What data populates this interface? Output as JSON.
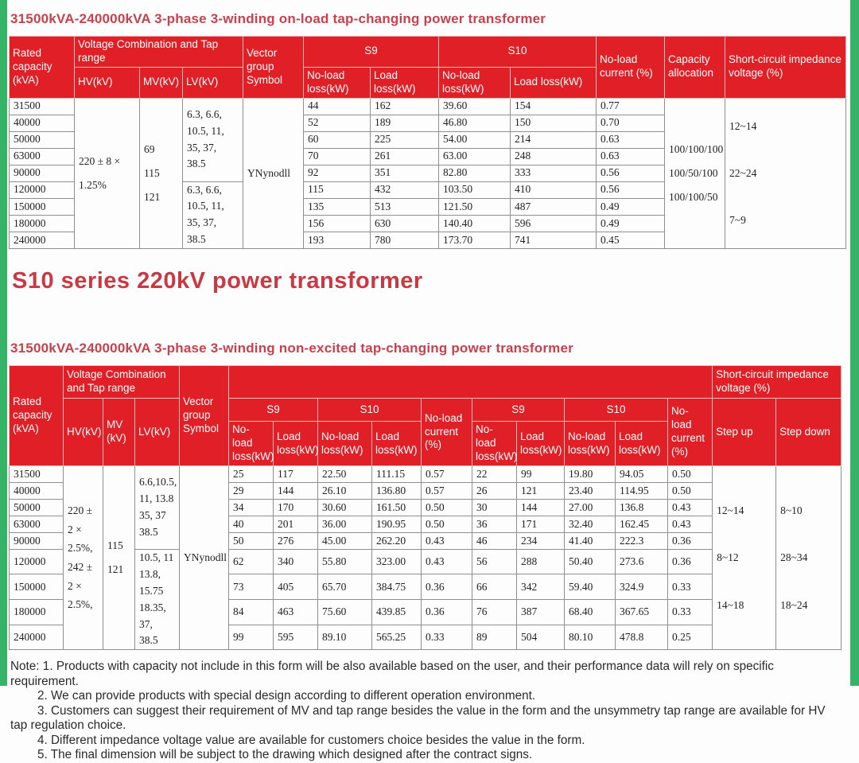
{
  "page": {
    "accent_red": "#e01f26",
    "title_red": "#c8414c",
    "green_strip": "#35b468",
    "title1": "31500kVA-240000kVA 3-phase 3-winding on-load tap-changing power transformer",
    "heading": "S10 series 220kV power transformer",
    "title2": "31500kVA-240000kVA 3-phase 3-winding non-excited tap-changing power transformer"
  },
  "table1": {
    "header": {
      "rated": "Rated capacity (kVA)",
      "voltage_combination": "Voltage Combination and Tap range",
      "hv": "HV(kV)",
      "mv": "MV(kV)",
      "lv": "LV(kV)",
      "vector": "Vector group Symbol",
      "s9": "S9",
      "s10": "S10",
      "no_load_loss": "No-load loss(kW)",
      "load_loss": "Load loss(kW)",
      "no_load_current": "No-load current (%)",
      "capacity_allocation": "Capacity allocation",
      "short_circuit": "Short-circuit impedance voltage (%)"
    },
    "merged": {
      "hv": "220 ± 8 ×\n1.25%",
      "mv": "69\n115\n121",
      "lv_top": "6.3, 6.6,\n10.5, 11,\n35, 37,\n38.5",
      "lv_bottom": "6.3, 6.6,\n10.5, 11,\n35, 37,\n38.5",
      "vector": "YNynodll",
      "capacity_allocation": "100/100/100\n100/50/100\n100/100/50",
      "short_circuit": "12~14\n\n22~24\n\n7~9"
    },
    "rows": [
      [
        "31500",
        "44",
        "162",
        "39.60",
        "154",
        "0.77"
      ],
      [
        "40000",
        "52",
        "189",
        "46.80",
        "150",
        "0.70"
      ],
      [
        "50000",
        "60",
        "225",
        "54.00",
        "214",
        "0.63"
      ],
      [
        "63000",
        "70",
        "261",
        "63.00",
        "248",
        "0.63"
      ],
      [
        "90000",
        "92",
        "351",
        "82.80",
        "333",
        "0.56"
      ],
      [
        "120000",
        "115",
        "432",
        "103.50",
        "410",
        "0.56"
      ],
      [
        "150000",
        "135",
        "513",
        "121.50",
        "487",
        "0.49"
      ],
      [
        "180000",
        "156",
        "630",
        "140.40",
        "596",
        "0.49"
      ],
      [
        "240000",
        "193",
        "780",
        "173.70",
        "741",
        "0.45"
      ]
    ]
  },
  "table2": {
    "header": {
      "rated": "Rated capacity (kVA)",
      "voltage_combination": "Voltage Combination and Tap range",
      "hv": "HV(kV)",
      "mv": "MV (kV)",
      "lv": "LV(kV)",
      "vector": "Vector group Symbol",
      "s9": "S9",
      "s10": "S10",
      "no_load_loss": "No-load loss(kW)",
      "load_loss": "Load loss(kW)",
      "no_load_current": "No-load current (%)",
      "short_circuit": "Short-circuit impedance voltage (%)",
      "step_up": "Step up",
      "step_down": "Step down"
    },
    "merged": {
      "hv": "220 ±\n2 × 2.5%,\n242 ±\n2 × 2.5%,",
      "mv": "115\n121",
      "lv_top": "6.6,10.5,\n11, 13.8\n35, 37\n38.5",
      "lv_bottom": "10.5, 11\n13.8, 15.75\n18.35, 37,\n38.5",
      "vector": "YNynodll",
      "step_up": "12~14\n\n8~12\n\n14~18",
      "step_down": "8~10\n\n28~34\n\n18~24"
    },
    "rows": [
      [
        "31500",
        "25",
        "117",
        "22.50",
        "111.15",
        "0.57",
        "22",
        "99",
        "19.80",
        "94.05",
        "0.50"
      ],
      [
        "40000",
        "29",
        "144",
        "26.10",
        "136.80",
        "0.57",
        "26",
        "121",
        "23.40",
        "114.95",
        "0.50"
      ],
      [
        "50000",
        "34",
        "170",
        "30.60",
        "161.50",
        "0.50",
        "30",
        "144",
        "27.00",
        "136.8",
        "0.43"
      ],
      [
        "63000",
        "40",
        "201",
        "36.00",
        "190.95",
        "0.50",
        "36",
        "171",
        "32.40",
        "162.45",
        "0.43"
      ],
      [
        "90000",
        "50",
        "276",
        "45.00",
        "262.20",
        "0.43",
        "46",
        "234",
        "41.40",
        "222.3",
        "0.36"
      ],
      [
        "120000",
        "62",
        "340",
        "55.80",
        "323.00",
        "0.43",
        "56",
        "288",
        "50.40",
        "273.6",
        "0.36"
      ],
      [
        "150000",
        "73",
        "405",
        "65.70",
        "384.75",
        "0.36",
        "66",
        "342",
        "59.40",
        "324.9",
        "0.33"
      ],
      [
        "180000",
        "84",
        "463",
        "75.60",
        "439.85",
        "0.36",
        "76",
        "387",
        "68.40",
        "367.65",
        "0.33"
      ],
      [
        "240000",
        "99",
        "595",
        "89.10",
        "565.25",
        "0.33",
        "89",
        "504",
        "80.10",
        "478.8",
        "0.25"
      ]
    ]
  },
  "notes": [
    "Note: 1. Products with capacity not include in this form will be also available based on the user, and their performance data will rely on specific requirement.",
    "2. We can provide products with special design according to different operation environment.",
    "3. Customers can suggest their requirement of MV and tap range besides the value in the form and the unsymmetry tap range are available for HV tap regulation choice.",
    "4. Different impedance voltage value are available for customers choice besides the value in the form.",
    "5. The final dimension will be subject to the drawing which designed after the contract signs."
  ]
}
